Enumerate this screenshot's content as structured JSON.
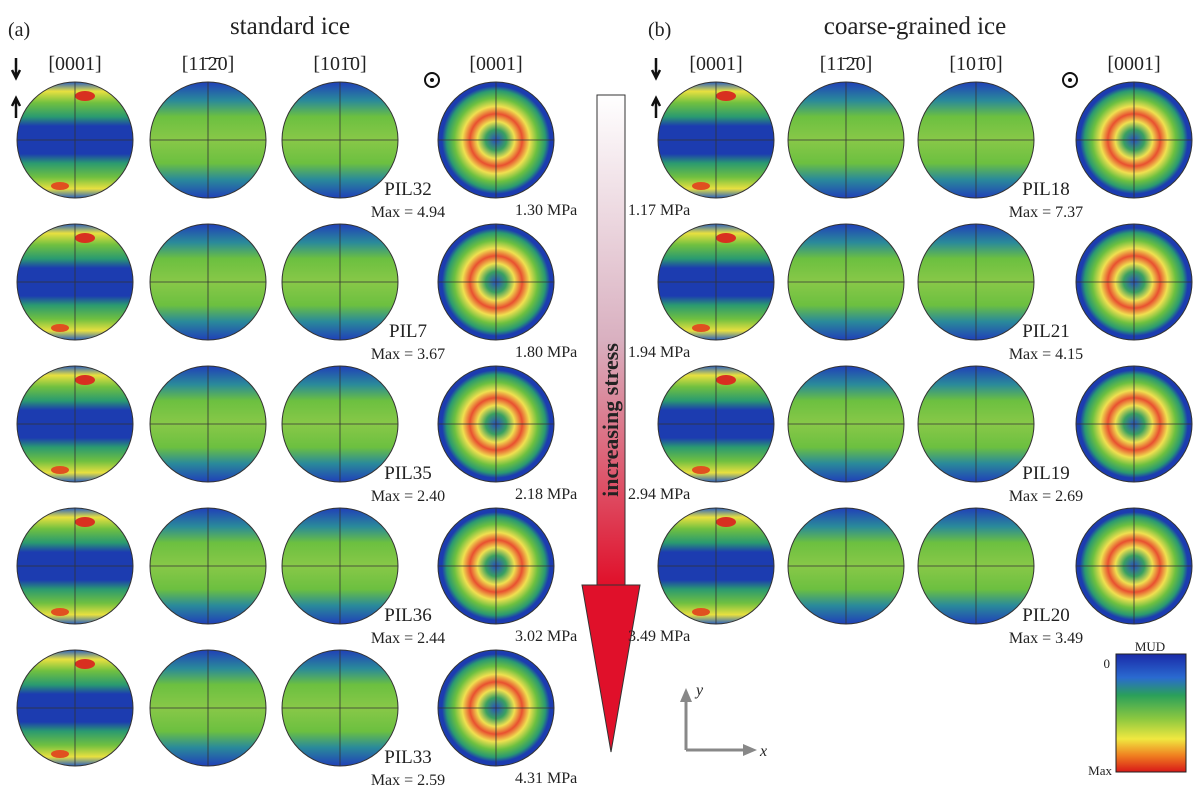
{
  "panels": [
    {
      "label": "(a)",
      "title": "standard ice",
      "columns": [
        "[0001]",
        "[11̄2̄0]",
        "[101̄0]",
        "[0001]"
      ],
      "rows": [
        {
          "sample": "PIL32",
          "max": "Max = 4.94",
          "stress": "1.30 MPa"
        },
        {
          "sample": "PIL7",
          "max": "Max = 3.67",
          "stress": "1.80 MPa"
        },
        {
          "sample": "PIL35",
          "max": "Max = 2.40",
          "stress": "2.18 MPa"
        },
        {
          "sample": "PIL36",
          "max": "Max = 2.44",
          "stress": "3.02 MPa"
        },
        {
          "sample": "PIL33",
          "max": "Max = 2.59",
          "stress": "4.31 MPa"
        }
      ]
    },
    {
      "label": "(b)",
      "title": "coarse-grained ice",
      "columns": [
        "[0001]",
        "[11̄2̄0]",
        "[101̄0]",
        "[0001]"
      ],
      "rows": [
        {
          "sample": "PIL18",
          "max": "Max = 7.37",
          "stress": "1.17 MPa"
        },
        {
          "sample": "PIL21",
          "max": "Max = 4.15",
          "stress": "1.94 MPa"
        },
        {
          "sample": "PIL19",
          "max": "Max = 2.69",
          "stress": "2.94 MPa"
        },
        {
          "sample": "PIL20",
          "max": "Max = 3.49",
          "stress": "3.49 MPa"
        }
      ]
    }
  ],
  "arrow_label": "increasing stress",
  "legend": {
    "title": "MUD",
    "min": "0",
    "max": "Max"
  },
  "axes": {
    "y": "y",
    "x": "x"
  }
}
